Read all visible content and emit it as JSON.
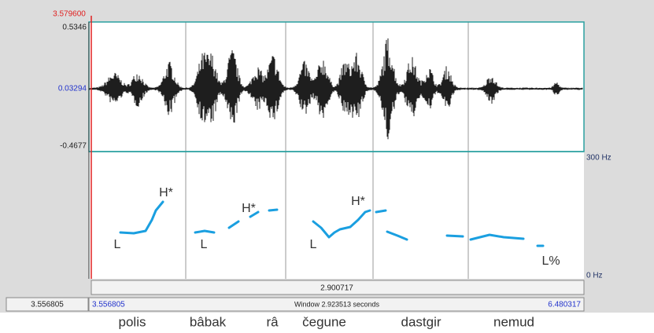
{
  "cursor_time": "3.579600",
  "waveform_axis": {
    "max": "0.5346",
    "mid": "0.03294",
    "min": "-0.4677"
  },
  "pitch_axis": {
    "max": "300 Hz",
    "min": "0 Hz"
  },
  "selection_duration": "2.900717",
  "outer_start": "3.556805",
  "window": {
    "start": "3.556805",
    "label": "Window 2.923513 seconds",
    "end": "6.480317"
  },
  "tones": [
    "H*",
    "L",
    "H*",
    "L",
    "H*",
    "L",
    "L%"
  ],
  "words": [
    "polis",
    "bâbak",
    "râ",
    "čegune",
    "dastgir",
    "nemud"
  ]
}
